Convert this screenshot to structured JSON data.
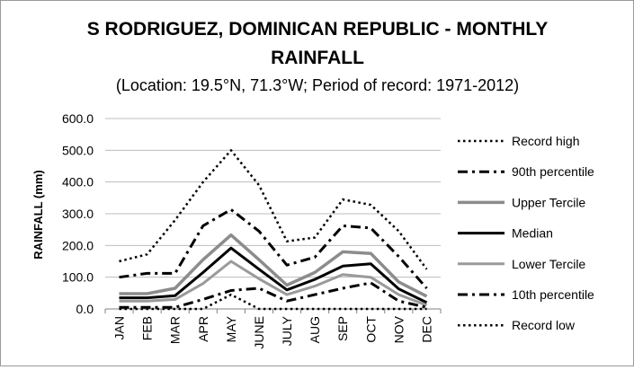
{
  "chart_data": {
    "type": "line",
    "title_line1": "S RODRIGUEZ, DOMINICAN REPUBLIC - MONTHLY",
    "title_line2": "RAINFALL",
    "subtitle": "(Location: 19.5°N, 71.3°W; Period of record: 1971-2012)",
    "ylabel": "RAINFALL (mm)",
    "xlabel": "",
    "ylim": [
      0,
      600
    ],
    "yticks": [
      "0.0",
      "100.0",
      "200.0",
      "300.0",
      "400.0",
      "500.0",
      "600.0"
    ],
    "categories": [
      "JAN",
      "FEB",
      "MAR",
      "APR",
      "MAY",
      "JUNE",
      "JULY",
      "AUG",
      "SEP",
      "OCT",
      "NOV",
      "DEC"
    ],
    "grid": "horizontal",
    "legend_position": "right",
    "series": [
      {
        "name": "Record high",
        "style": "dotted",
        "color": "#000000",
        "width": 2.5,
        "values": [
          150,
          172,
          280,
          400,
          500,
          390,
          213,
          225,
          345,
          328,
          245,
          125
        ]
      },
      {
        "name": "90th percentile",
        "style": "dashdot",
        "color": "#000000",
        "width": 3,
        "values": [
          100,
          112,
          112,
          262,
          313,
          245,
          138,
          163,
          262,
          255,
          165,
          65
        ]
      },
      {
        "name": "Upper Tercile",
        "style": "solid",
        "color": "#8c8c8c",
        "width": 3.5,
        "values": [
          48,
          48,
          65,
          155,
          233,
          155,
          75,
          115,
          180,
          175,
          85,
          40
        ]
      },
      {
        "name": "Median",
        "style": "solid",
        "color": "#000000",
        "width": 3,
        "values": [
          35,
          35,
          42,
          115,
          192,
          125,
          60,
          93,
          135,
          142,
          63,
          20
        ]
      },
      {
        "name": "Lower Tercile",
        "style": "solid",
        "color": "#9a9a9a",
        "width": 3,
        "values": [
          25,
          25,
          30,
          80,
          150,
          95,
          45,
          72,
          108,
          100,
          45,
          12
        ]
      },
      {
        "name": "10th percentile",
        "style": "dashdot",
        "color": "#000000",
        "width": 3,
        "values": [
          5,
          5,
          5,
          30,
          58,
          65,
          25,
          45,
          65,
          82,
          25,
          5
        ]
      },
      {
        "name": "Record low",
        "style": "dotted",
        "color": "#000000",
        "width": 2.5,
        "values": [
          0,
          0,
          0,
          0,
          45,
          0,
          0,
          0,
          0,
          0,
          0,
          0
        ]
      }
    ]
  }
}
